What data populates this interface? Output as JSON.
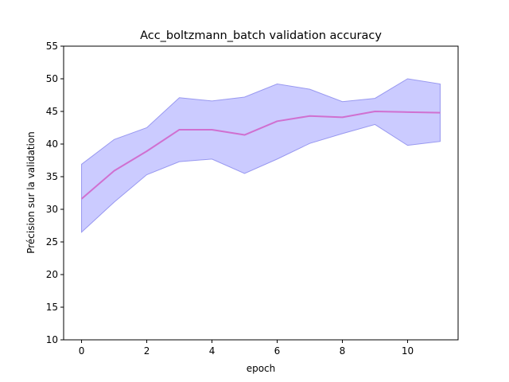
{
  "chart_data": {
    "type": "line",
    "title": "Acc_boltzmann_batch validation accuracy",
    "xlabel": "epoch",
    "ylabel": "Précision sur la validation",
    "xlim": [
      -0.55,
      11.55
    ],
    "ylim": [
      10,
      55
    ],
    "x_ticks": [
      0,
      2,
      4,
      6,
      8,
      10
    ],
    "y_ticks": [
      10,
      15,
      20,
      25,
      30,
      35,
      40,
      45,
      50,
      55
    ],
    "grid": false,
    "series": [
      {
        "x": [
          0,
          1,
          2,
          3,
          4,
          5,
          6,
          7,
          8,
          9,
          10,
          11
        ],
        "values": [
          31.6,
          35.9,
          38.9,
          42.2,
          42.2,
          41.4,
          43.5,
          44.3,
          44.1,
          45.0,
          44.9,
          44.8
        ],
        "upper": [
          36.9,
          40.7,
          42.5,
          47.1,
          46.6,
          47.2,
          49.2,
          48.4,
          46.5,
          47.0,
          50.0,
          49.2
        ],
        "lower": [
          26.5,
          31.1,
          35.3,
          37.3,
          37.7,
          35.5,
          37.7,
          40.1,
          41.6,
          43.0,
          39.8,
          40.4
        ]
      }
    ],
    "colors": {
      "line": "#d070d0",
      "band_fill": "#c8c8ff",
      "band_edge": "#9898f0",
      "axes": "#000000"
    }
  }
}
